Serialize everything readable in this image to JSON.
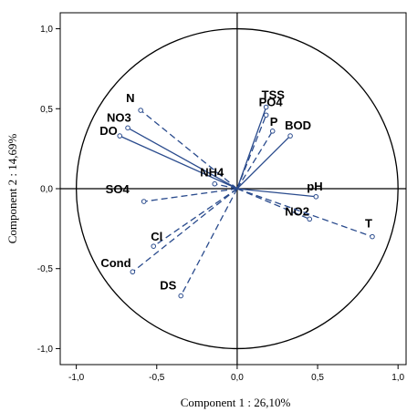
{
  "chart_data": {
    "type": "scatter",
    "subtype": "pca-correlation-circle",
    "title": "",
    "xlabel": "Component 1 : 26,10%",
    "ylabel": "Component 2 : 14,69%",
    "xlim": [
      -1.1,
      1.05
    ],
    "ylim": [
      -1.1,
      1.1
    ],
    "x_ticks": [
      "-1,0",
      "-0,5",
      "0,0",
      "0,5",
      "1,0"
    ],
    "y_ticks": [
      "1,0",
      "0,5",
      "0,0",
      "-0,5",
      "-1,0"
    ],
    "grid": false,
    "unit_circle": true,
    "line_color": "#2a4b8d",
    "points": [
      {
        "label": "N",
        "x": -0.6,
        "y": 0.49,
        "solid": false
      },
      {
        "label": "NO3",
        "x": -0.68,
        "y": 0.38,
        "solid": true
      },
      {
        "label": "DO",
        "x": -0.73,
        "y": 0.33,
        "solid": true
      },
      {
        "label": "NH4",
        "x": -0.14,
        "y": 0.03,
        "solid": false
      },
      {
        "label": "TSS",
        "x": 0.18,
        "y": 0.51,
        "solid": true
      },
      {
        "label": "PO4",
        "x": 0.18,
        "y": 0.46,
        "solid": false
      },
      {
        "label": "P",
        "x": 0.22,
        "y": 0.36,
        "solid": false
      },
      {
        "label": "BOD",
        "x": 0.33,
        "y": 0.33,
        "solid": true
      },
      {
        "label": "SO4",
        "x": -0.58,
        "y": -0.08,
        "solid": false
      },
      {
        "label": "pH",
        "x": 0.49,
        "y": -0.05,
        "solid": true
      },
      {
        "label": "NO2",
        "x": 0.45,
        "y": -0.19,
        "solid": false
      },
      {
        "label": "T",
        "x": 0.84,
        "y": -0.3,
        "solid": false
      },
      {
        "label": "Cl",
        "x": -0.52,
        "y": -0.36,
        "solid": false
      },
      {
        "label": "Cond",
        "x": -0.65,
        "y": -0.52,
        "solid": false
      },
      {
        "label": "DS",
        "x": -0.35,
        "y": -0.67,
        "solid": false
      }
    ]
  }
}
